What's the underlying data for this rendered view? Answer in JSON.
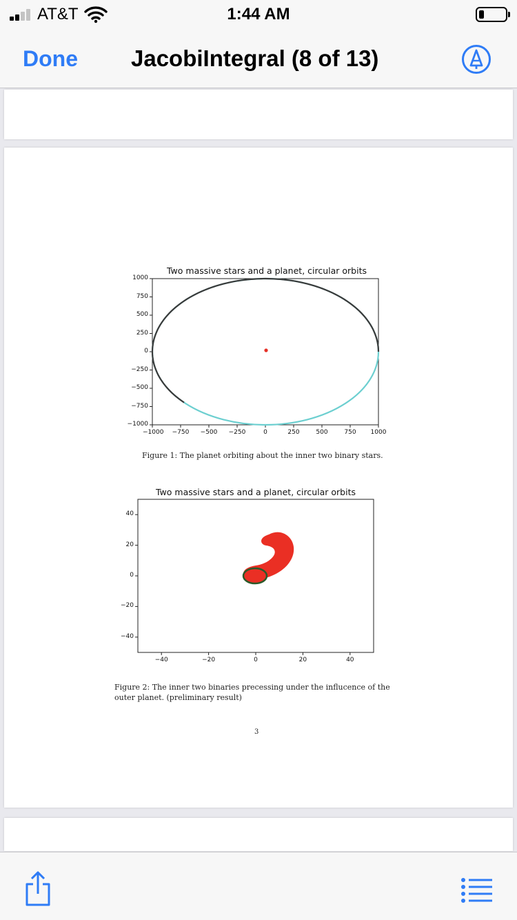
{
  "status_bar": {
    "carrier": "AT&T",
    "time": "1:44 AM",
    "battery_level": 0.15,
    "signal_bars": 2
  },
  "nav": {
    "done_label": "Done",
    "title": "JacobiIntegral (8 of 13)",
    "markup_icon": "markup-pencil-icon"
  },
  "document": {
    "figure1": {
      "caption": "Figure 1: The planet orbiting about the inner two binary stars.",
      "chart_data": {
        "type": "line",
        "title": "Two massive stars and a planet, circular orbits",
        "xlabel": "",
        "ylabel": "",
        "xlim": [
          -1000,
          1000
        ],
        "ylim": [
          -1000,
          1000
        ],
        "x_ticks": [
          "−1000",
          "−750",
          "−500",
          "−250",
          "0",
          "250",
          "500",
          "750",
          "1000"
        ],
        "y_ticks": [
          "1000",
          "750",
          "500",
          "250",
          "0",
          "−250",
          "−500",
          "−750",
          "−1000"
        ],
        "series": [
          {
            "color": "#6ccfd0",
            "points": "circle radius 1000 centered at (0,0)"
          },
          {
            "color": "#3a3a3a",
            "arc": {
              "radius": 1000,
              "start_deg": 0,
              "end_deg": 225
            }
          },
          {
            "color": "#e53027",
            "marker": {
              "x": 0,
              "y": 0
            }
          }
        ],
        "grid": false
      }
    },
    "figure2": {
      "caption": "Figure 2: The inner two binaries precessing under the influcence of the outer planet. (preliminary result)",
      "chart_data": {
        "type": "scatter",
        "title": "Two massive stars and a planet, circular orbits",
        "xlabel": "",
        "ylabel": "",
        "xlim": [
          -50,
          50
        ],
        "ylim": [
          -50,
          50
        ],
        "x_ticks": [
          "−40",
          "−20",
          "0",
          "20",
          "40"
        ],
        "y_ticks": [
          "40",
          "20",
          "0",
          "−20",
          "−40"
        ],
        "series": [
          {
            "color": "#ea2f24",
            "region": "crescent of precessing orbits, x 0..17, y 0..27"
          },
          {
            "color": "#2a5a2a",
            "ellipse": {
              "cx": 0,
              "cy": 0,
              "rx": 5,
              "ry": 3.5
            }
          }
        ],
        "grid": false
      }
    },
    "page_number": "3"
  },
  "toolbar": {
    "share_icon": "share-icon",
    "list_icon": "list-icon"
  },
  "colors": {
    "accent": "#2f7cf6",
    "orbit_outer": "#6ccfd0",
    "orbit_path": "#3a3a3a",
    "star": "#e53027"
  }
}
